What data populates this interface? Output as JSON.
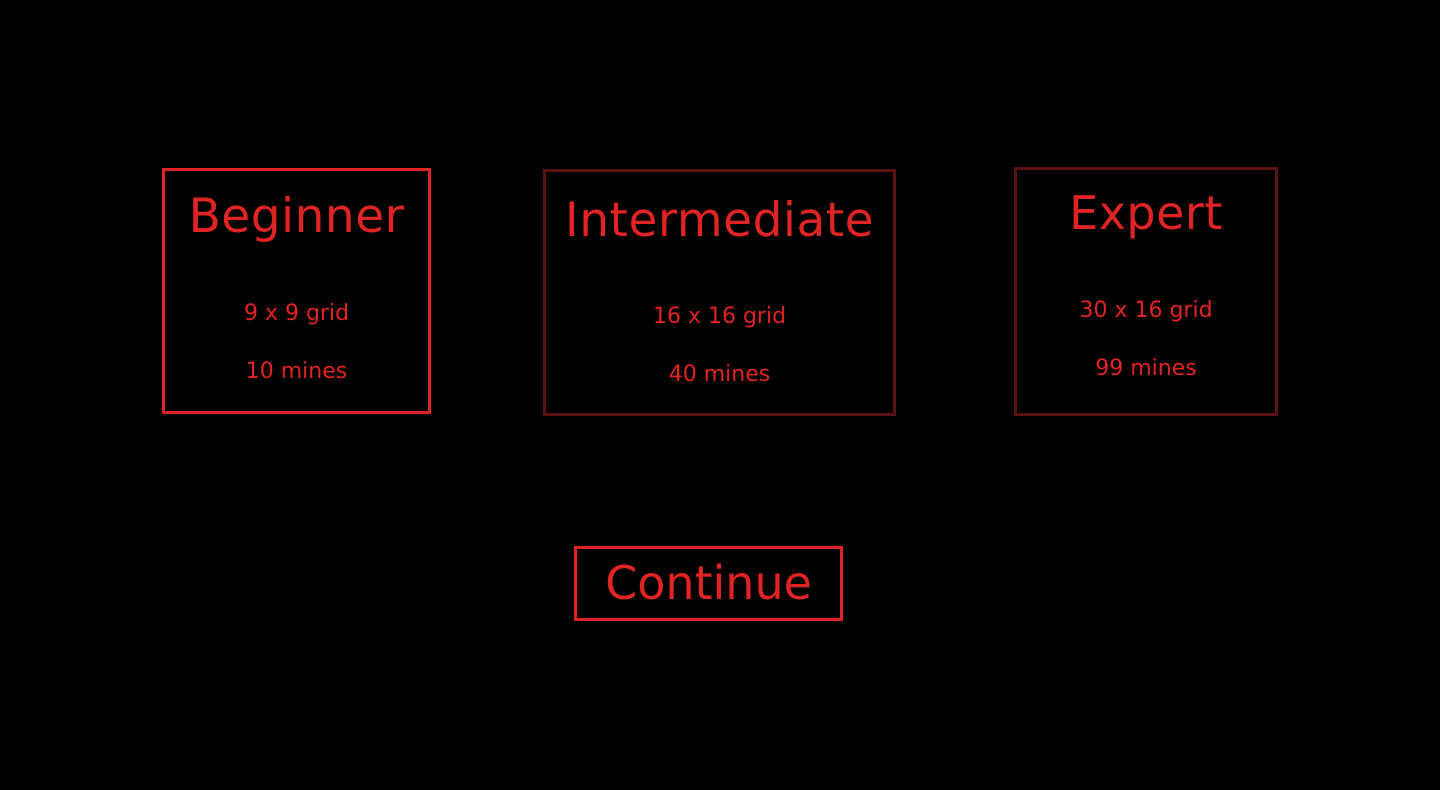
{
  "colors": {
    "background": "#000000",
    "accent": "#e02424",
    "unselected_border": "#5a1212"
  },
  "difficulties": [
    {
      "title": "Beginner",
      "grid": "9 x 9 grid",
      "mines": "10 mines",
      "selected": true
    },
    {
      "title": "Intermediate",
      "grid": "16 x 16 grid",
      "mines": "40 mines",
      "selected": false
    },
    {
      "title": "Expert",
      "grid": "30 x 16 grid",
      "mines": "99 mines",
      "selected": false
    }
  ],
  "continue_label": "Continue"
}
